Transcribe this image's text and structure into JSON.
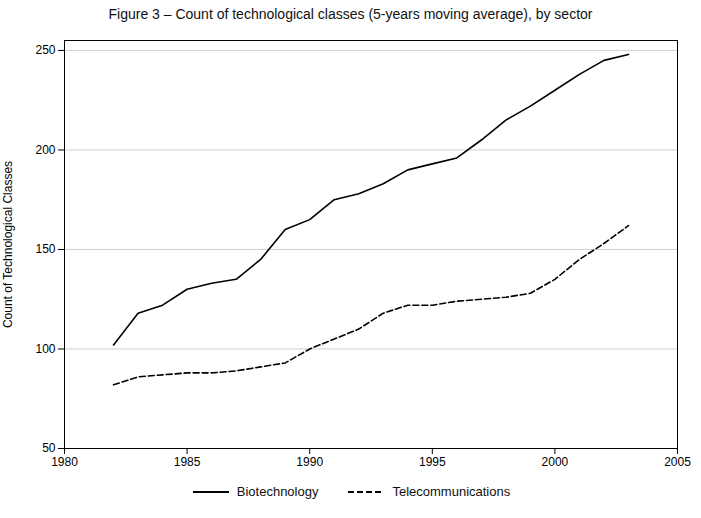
{
  "chart_data": {
    "type": "line",
    "title": "Figure 3  –  Count of technological classes (5-years moving average), by sector",
    "ylabel": "Count of Technological Classes",
    "x": [
      1982,
      1983,
      1984,
      1985,
      1986,
      1987,
      1988,
      1989,
      1990,
      1991,
      1992,
      1993,
      1994,
      1995,
      1996,
      1997,
      1998,
      1999,
      2000,
      2001,
      2002,
      2003
    ],
    "series": [
      {
        "name": "Biotechnology",
        "color": "#000000",
        "line_style": "solid",
        "values": [
          102,
          118,
          122,
          130,
          133,
          135,
          145,
          160,
          165,
          175,
          178,
          183,
          190,
          193,
          196,
          205,
          215,
          222,
          230,
          238,
          245,
          248
        ]
      },
      {
        "name": "Telecommunications",
        "color": "#000000",
        "line_style": "dashed",
        "values": [
          82,
          86,
          87,
          88,
          88,
          89,
          91,
          93,
          100,
          105,
          110,
          118,
          122,
          122,
          124,
          125,
          126,
          128,
          135,
          145,
          153,
          162
        ]
      }
    ],
    "xlim": [
      1980,
      2005
    ],
    "ylim": [
      50,
      255
    ],
    "xticks": [
      1980,
      1985,
      1990,
      1995,
      2000,
      2005
    ],
    "yticks": [
      50,
      100,
      150,
      200,
      250
    ],
    "grid": "y",
    "legend": "bottom"
  }
}
